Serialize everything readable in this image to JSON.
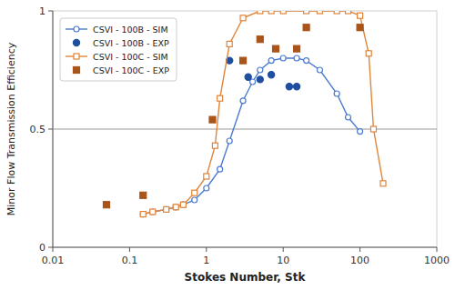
{
  "chart_data": {
    "type": "line",
    "xlabel": "Stokes Number, Stk",
    "ylabel": "Minor Flow Transmission Efficiency",
    "log": "x",
    "xlim": [
      0.01,
      1000
    ],
    "ylim": [
      0,
      1
    ],
    "xticks": [
      0.01,
      0.1,
      1,
      10,
      100,
      1000
    ],
    "yticks": [
      0,
      0.5,
      1
    ],
    "reference_line": 0.5,
    "grid": false,
    "legend": "upper left",
    "series": [
      {
        "name": "CSVI - 100B - SIM",
        "type": "line",
        "marker": "circle",
        "line_style": "solid",
        "x": [
          0.15,
          0.2,
          0.3,
          0.4,
          0.5,
          0.7,
          1.0,
          1.5,
          2.0,
          3.0,
          4.0,
          5.0,
          7.0,
          10.0,
          15.0,
          20.0,
          30.0,
          50.0,
          70.0,
          100.0
        ],
        "values": [
          0.14,
          0.15,
          0.16,
          0.17,
          0.18,
          0.2,
          0.25,
          0.33,
          0.45,
          0.62,
          0.7,
          0.75,
          0.79,
          0.8,
          0.8,
          0.79,
          0.75,
          0.65,
          0.55,
          0.49
        ]
      },
      {
        "name": "CSVI - 100B - EXP",
        "type": "scatter",
        "marker": "circle",
        "line_style": "none",
        "x": [
          2.0,
          3.5,
          5.0,
          7.0,
          12.0,
          15.0
        ],
        "values": [
          0.79,
          0.72,
          0.71,
          0.73,
          0.68,
          0.68
        ]
      },
      {
        "name": "CSVI - 100C - SIM",
        "type": "line",
        "marker": "square",
        "line_style": "solid",
        "x": [
          0.15,
          0.2,
          0.3,
          0.4,
          0.5,
          0.7,
          1.0,
          1.3,
          1.5,
          2.0,
          3.0,
          5.0,
          7.0,
          10.0,
          20.0,
          30.0,
          50.0,
          70.0,
          100.0,
          130.0,
          150.0,
          200.0
        ],
        "values": [
          0.14,
          0.15,
          0.16,
          0.17,
          0.18,
          0.23,
          0.3,
          0.43,
          0.63,
          0.86,
          0.97,
          1.0,
          1.0,
          1.0,
          1.0,
          1.0,
          1.0,
          1.0,
          0.98,
          0.82,
          0.5,
          0.27
        ]
      },
      {
        "name": "CSVI - 100C - EXP",
        "type": "scatter",
        "marker": "square",
        "line_style": "none",
        "x": [
          0.05,
          0.15,
          1.2,
          3.0,
          5.0,
          8.0,
          15.0,
          20.0,
          100.0
        ],
        "values": [
          0.18,
          0.22,
          0.54,
          0.79,
          0.88,
          0.84,
          0.84,
          0.93,
          0.93
        ]
      }
    ]
  }
}
